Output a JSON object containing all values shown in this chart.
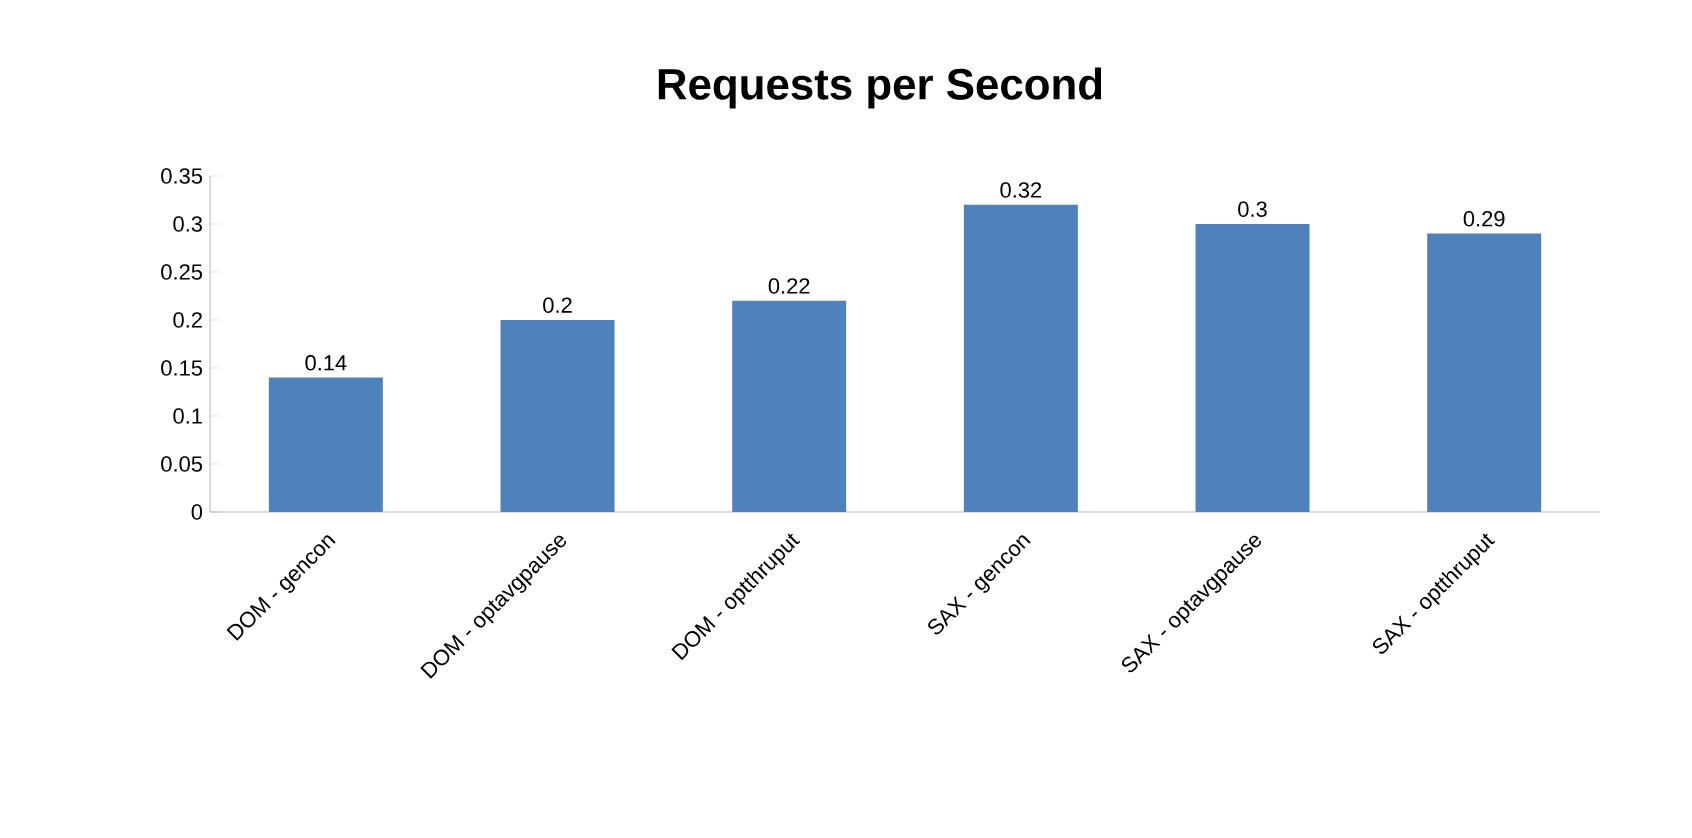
{
  "chart_data": {
    "type": "bar",
    "title": "Requests per Second",
    "categories": [
      "DOM - gencon",
      "DOM - optavgpause",
      "DOM - optthruput",
      "SAX - gencon",
      "SAX - optavgpause",
      "SAX - optthruput"
    ],
    "values": [
      0.14,
      0.2,
      0.22,
      0.32,
      0.3,
      0.29
    ],
    "color": "#4f81bd",
    "ylim": [
      0,
      0.35
    ],
    "yticks": [
      0,
      0.05,
      0.1,
      0.15,
      0.2,
      0.25,
      0.3,
      0.35
    ],
    "data_labels": true,
    "grid": false
  }
}
